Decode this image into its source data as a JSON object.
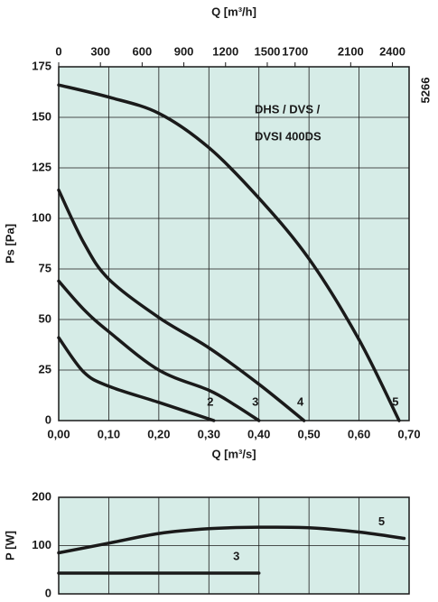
{
  "chart_data": [
    {
      "type": "line",
      "title": [
        "DHS / DVS /",
        "DVSI 400DS"
      ],
      "code": "5266",
      "x_label": "Q [m³/s]",
      "x2_label": "Q [m³/h]",
      "y_label": "Ps [Pa]",
      "xlim": [
        0,
        0.7
      ],
      "xticks": [
        {
          "value": 0,
          "label": "0,00"
        },
        {
          "value": 0.1,
          "label": "0,10"
        },
        {
          "value": 0.2,
          "label": "0,20"
        },
        {
          "value": 0.3,
          "label": "0,30"
        },
        {
          "value": 0.4,
          "label": "0,40"
        },
        {
          "value": 0.5,
          "label": "0,50"
        },
        {
          "value": 0.6,
          "label": "0,60"
        },
        {
          "value": 0.7,
          "label": "0,70"
        }
      ],
      "x2lim": [
        0,
        2520
      ],
      "x2ticks": [
        0,
        300,
        600,
        900,
        1200,
        1500,
        1700,
        2100,
        2400
      ],
      "ylim": [
        0,
        175
      ],
      "yticks": [
        0,
        25,
        50,
        75,
        100,
        125,
        150,
        175
      ],
      "grid": true,
      "series": [
        {
          "name": "2",
          "color": "#1a1a1a",
          "x": [
            0,
            0.05,
            0.1,
            0.2,
            0.31
          ],
          "values": [
            41,
            24,
            17,
            9,
            0
          ]
        },
        {
          "name": "3",
          "color": "#1a1a1a",
          "x": [
            0,
            0.05,
            0.1,
            0.2,
            0.3,
            0.35,
            0.4
          ],
          "values": [
            69,
            55,
            44,
            25,
            15,
            8,
            0
          ]
        },
        {
          "name": "4",
          "color": "#1a1a1a",
          "x": [
            0,
            0.05,
            0.1,
            0.2,
            0.3,
            0.4,
            0.49
          ],
          "values": [
            114,
            88,
            70,
            51,
            36,
            18,
            0
          ]
        },
        {
          "name": "5",
          "color": "#1a1a1a",
          "x": [
            0,
            0.1,
            0.2,
            0.3,
            0.4,
            0.5,
            0.6,
            0.68
          ],
          "values": [
            166,
            160,
            152,
            135,
            110,
            80,
            40,
            0
          ]
        }
      ]
    },
    {
      "type": "line",
      "y_label": "P [W]",
      "xlim": [
        0,
        0.7
      ],
      "xticks": [
        0,
        0.1,
        0.2,
        0.3,
        0.4,
        0.5,
        0.6,
        0.7
      ],
      "ylim": [
        0,
        200
      ],
      "yticks": [
        0,
        100,
        200
      ],
      "grid": true,
      "series": [
        {
          "name": "5",
          "color": "#1a1a1a",
          "x": [
            0,
            0.1,
            0.2,
            0.3,
            0.4,
            0.5,
            0.6,
            0.69
          ],
          "values": [
            85,
            105,
            125,
            135,
            138,
            137,
            128,
            115
          ]
        },
        {
          "name": "3",
          "color": "#1a1a1a",
          "x": [
            0,
            0.4
          ],
          "values": [
            43,
            43
          ]
        }
      ]
    }
  ]
}
